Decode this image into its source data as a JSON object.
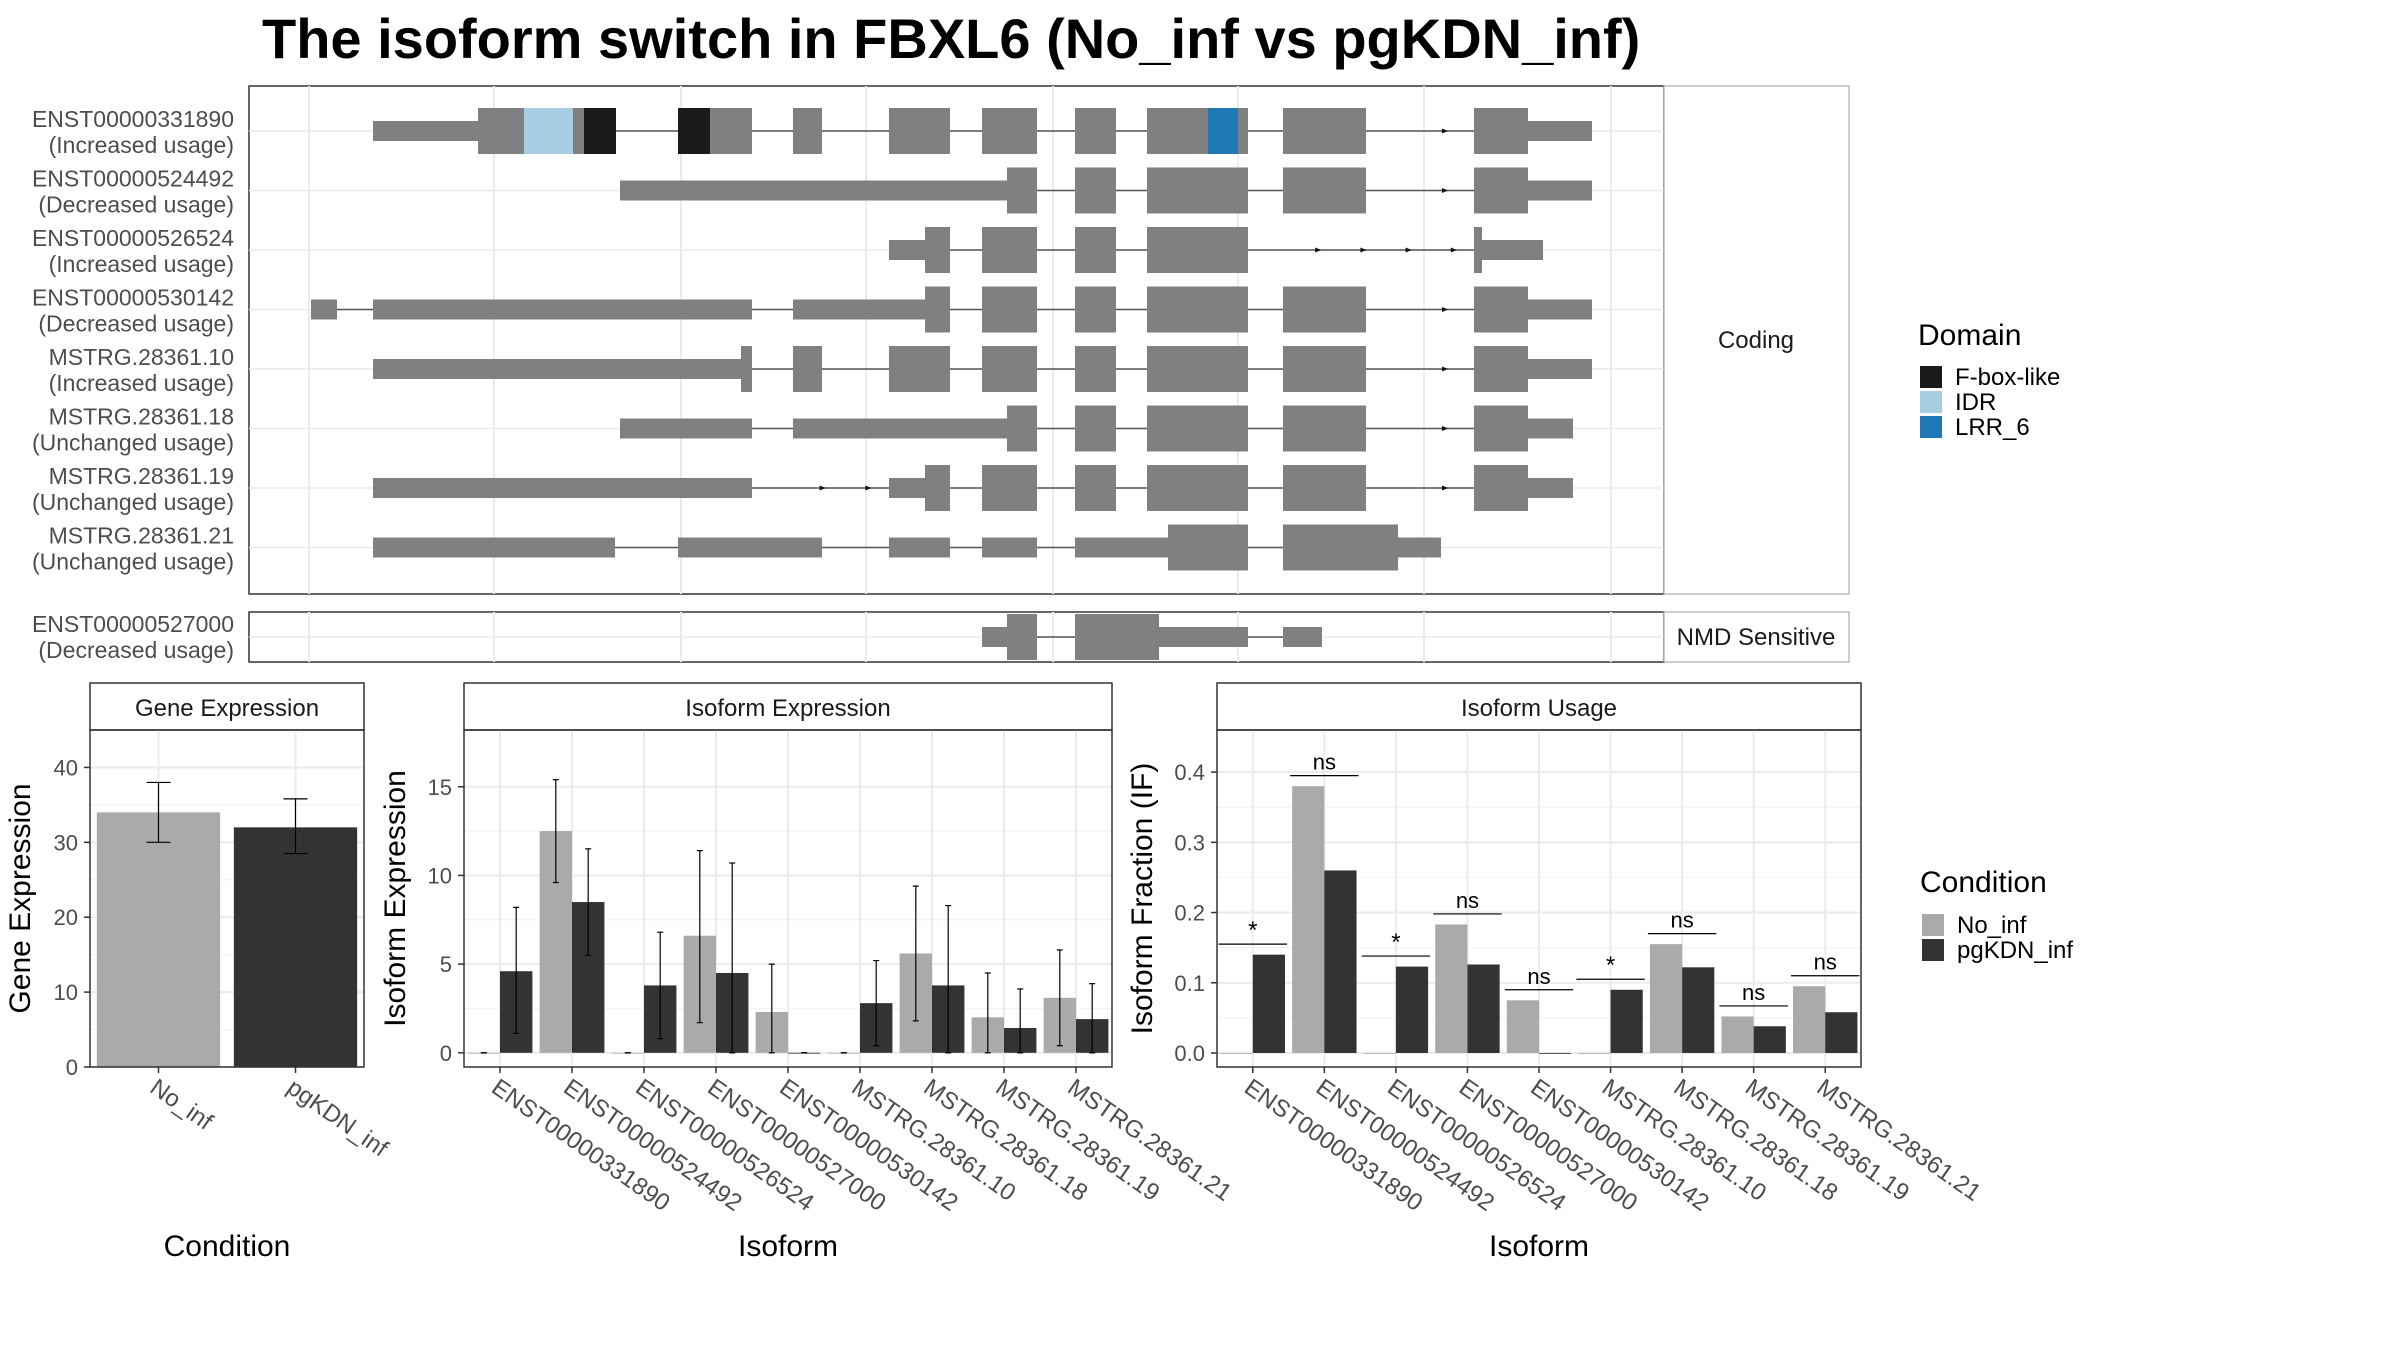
{
  "title": "The isoform switch in FBXL6 (No_inf vs pgKDN_inf)",
  "structure": {
    "coding_label": "Coding",
    "nmd_label": "NMD Sensitive",
    "coding_transcripts": [
      {
        "id": "ENST00000331890",
        "usage": "(Increased usage)"
      },
      {
        "id": "ENST00000524492",
        "usage": "(Decreased usage)"
      },
      {
        "id": "ENST00000526524",
        "usage": "(Increased usage)"
      },
      {
        "id": "ENST00000530142",
        "usage": "(Decreased usage)"
      },
      {
        "id": "MSTRG.28361.10",
        "usage": "(Increased usage)"
      },
      {
        "id": "MSTRG.28361.18",
        "usage": "(Unchanged usage)"
      },
      {
        "id": "MSTRG.28361.19",
        "usage": "(Unchanged usage)"
      },
      {
        "id": "MSTRG.28361.21",
        "usage": "(Unchanged usage)"
      }
    ],
    "nmd_transcripts": [
      {
        "id": "ENST00000527000",
        "usage": "(Decreased usage)"
      }
    ]
  },
  "legend_domain": {
    "title": "Domain",
    "items": [
      {
        "label": "F-box-like",
        "color": "#1a1a1a"
      },
      {
        "label": "IDR",
        "color": "#a6cee3"
      },
      {
        "label": "LRR_6",
        "color": "#1f78b4"
      }
    ]
  },
  "legend_condition": {
    "title": "Condition",
    "items": [
      {
        "label": "No_inf",
        "color": "#aaaaaa"
      },
      {
        "label": "pgKDN_inf",
        "color": "#333333"
      }
    ]
  },
  "chart_data": [
    {
      "type": "bar",
      "title": "Gene Expression",
      "xlabel": "Condition",
      "ylabel": "Gene Expression",
      "categories": [
        "No_inf",
        "pgKDN_inf"
      ],
      "values": [
        34,
        32
      ],
      "errors": [
        [
          30,
          38
        ],
        [
          28.5,
          35.8
        ]
      ],
      "ylim": [
        0,
        45
      ],
      "yticks": [
        0,
        10,
        20,
        30,
        40
      ]
    },
    {
      "type": "bar",
      "title": "Isoform Expression",
      "xlabel": "Isoform",
      "ylabel": "Isoform Expression",
      "categories": [
        "ENST00000331890",
        "ENST00000524492",
        "ENST00000526524",
        "ENST00000527000",
        "ENST00000530142",
        "MSTRG.28361.10",
        "MSTRG.28361.18",
        "MSTRG.28361.19",
        "MSTRG.28361.21"
      ],
      "series": [
        {
          "name": "No_inf",
          "values": [
            0,
            12.5,
            0,
            6.6,
            2.3,
            0,
            5.6,
            2.0,
            3.1
          ],
          "errors": [
            [
              0,
              0
            ],
            [
              9.6,
              15.4
            ],
            [
              0,
              0
            ],
            [
              1.7,
              11.4
            ],
            [
              0,
              5.0
            ],
            [
              0,
              0
            ],
            [
              1.8,
              9.4
            ],
            [
              0,
              4.5
            ],
            [
              0.4,
              5.8
            ]
          ]
        },
        {
          "name": "pgKDN_inf",
          "values": [
            4.6,
            8.5,
            3.8,
            4.5,
            0,
            2.8,
            3.8,
            1.4,
            1.9
          ],
          "errors": [
            [
              1.1,
              8.2
            ],
            [
              5.5,
              11.5
            ],
            [
              0.8,
              6.8
            ],
            [
              0,
              10.7
            ],
            [
              0,
              0
            ],
            [
              0.4,
              5.2
            ],
            [
              0,
              8.3
            ],
            [
              0,
              3.6
            ],
            [
              0,
              3.9
            ]
          ]
        }
      ],
      "ylim": [
        -0.8,
        18.2
      ],
      "yticks": [
        0,
        5,
        10,
        15
      ]
    },
    {
      "type": "bar",
      "title": "Isoform Usage",
      "xlabel": "Isoform",
      "ylabel": "Isoform Fraction (IF)",
      "categories": [
        "ENST00000331890",
        "ENST00000524492",
        "ENST00000526524",
        "ENST00000527000",
        "ENST00000530142",
        "MSTRG.28361.10",
        "MSTRG.28361.18",
        "MSTRG.28361.19",
        "MSTRG.28361.21"
      ],
      "series": [
        {
          "name": "No_inf",
          "values": [
            0,
            0.38,
            0,
            0.183,
            0.075,
            0,
            0.155,
            0.052,
            0.095
          ]
        },
        {
          "name": "pgKDN_inf",
          "values": [
            0.14,
            0.26,
            0.123,
            0.126,
            0,
            0.09,
            0.122,
            0.038,
            0.058
          ]
        }
      ],
      "significance": [
        "*",
        "ns",
        "*",
        "ns",
        "ns",
        "*",
        "ns",
        "ns",
        "ns"
      ],
      "ylim": [
        -0.02,
        0.46
      ],
      "yticks": [
        0.0,
        0.1,
        0.2,
        0.3,
        0.4
      ],
      "ytick_labels": [
        "0.0",
        "0.1",
        "0.2",
        "0.3",
        "0.4"
      ]
    }
  ]
}
